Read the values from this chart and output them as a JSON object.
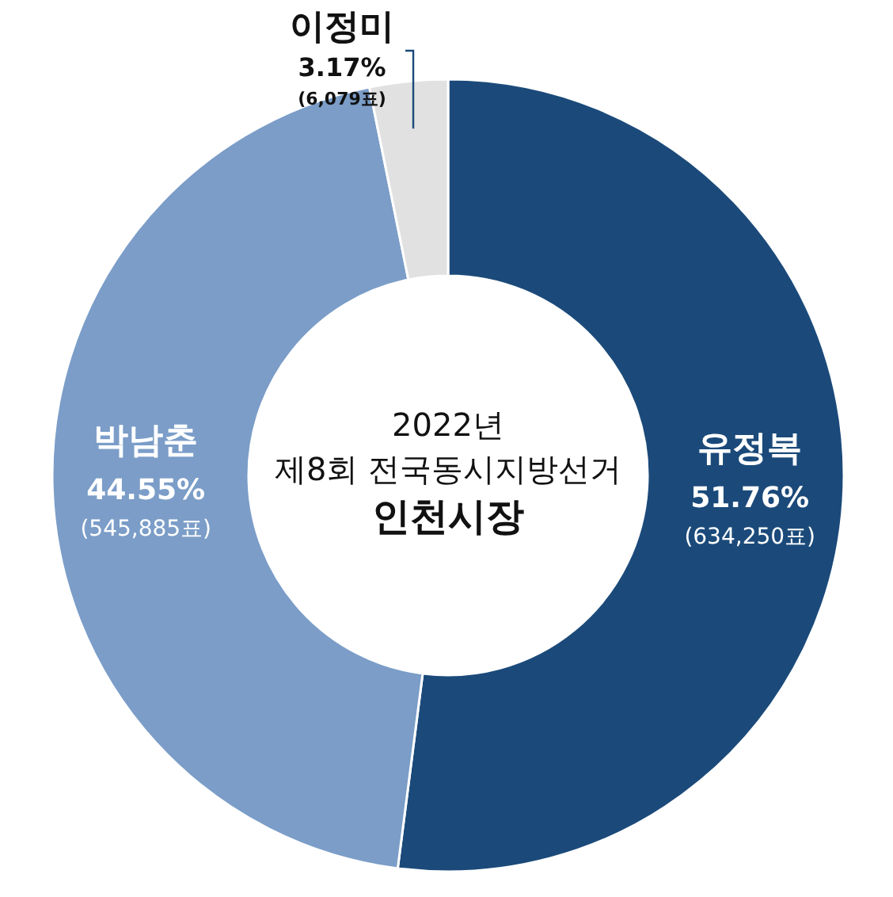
{
  "chart_data": {
    "type": "donut",
    "title": "인천시장",
    "subtitle": "2022년 제8회 전국동시지방선거",
    "categories": [
      "유정복",
      "박남춘",
      "이정미"
    ],
    "values": [
      51.76,
      44.55,
      3.17
    ],
    "colors": [
      "#1b4a7a",
      "#7b9dc8",
      "#e1e1e1"
    ],
    "value_labels": [
      "51.76% (634,250표)",
      "44.55% (545,885표)",
      "3.17% (6,079표)"
    ]
  }
}
